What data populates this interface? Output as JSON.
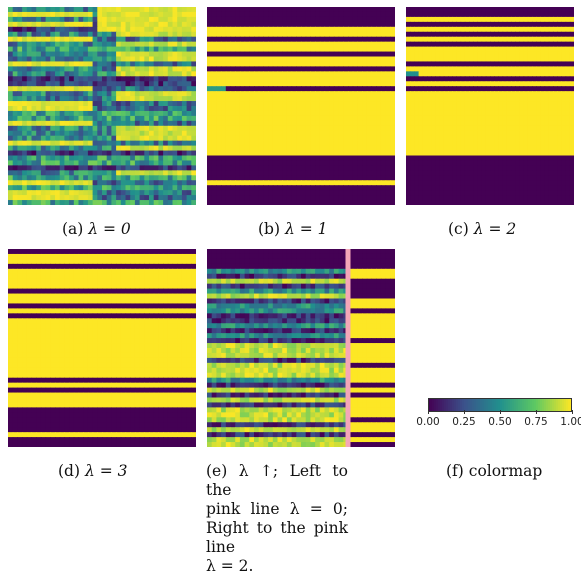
{
  "colors": {
    "low": "#440154",
    "mid": "#21908d",
    "high": "#fde725",
    "separator": "#f4a6b8"
  },
  "captions": {
    "a": {
      "prefix": "(a) ",
      "expr": "λ = 0"
    },
    "b": {
      "prefix": "(b) ",
      "expr": "λ = 1"
    },
    "c": {
      "prefix": "(c) ",
      "expr": "λ = 2"
    },
    "d": {
      "prefix": "(d) ",
      "expr": "λ = 3"
    },
    "e": {
      "line1": "(e) λ ↑; Left to the",
      "line2": "pink line λ = 0;",
      "line3": "Right to the pink line",
      "line4": "λ = 2."
    },
    "f": "(f) colormap"
  },
  "colorbar": {
    "ticks": [
      "0.00",
      "0.25",
      "0.50",
      "0.75",
      "1.00"
    ],
    "min": 0,
    "max": 1
  },
  "chart_data": [
    {
      "type": "heatmap",
      "title": "(a) λ = 0",
      "rows": 40,
      "cols": 40,
      "pattern": "noisy-mixed",
      "value_range": [
        0,
        1
      ]
    },
    {
      "type": "heatmap",
      "title": "(b) λ = 1",
      "rows": 40,
      "cols": 40,
      "pattern": "binary-rows",
      "row_values": [
        0,
        0,
        0,
        0,
        1,
        1,
        0,
        1,
        1,
        0,
        1,
        1,
        0,
        1,
        1,
        1,
        0,
        1,
        1,
        1,
        1,
        1,
        1,
        1,
        1,
        1,
        1,
        1,
        1,
        1,
        0,
        0,
        0,
        0,
        0,
        1,
        0,
        0,
        0,
        0
      ]
    },
    {
      "type": "heatmap",
      "title": "(c) λ = 2",
      "rows": 40,
      "cols": 40,
      "pattern": "binary-rows",
      "row_values": [
        0,
        0,
        1,
        0,
        1,
        0,
        1,
        0,
        1,
        1,
        1,
        0,
        1,
        1,
        0,
        1,
        0,
        1,
        1,
        1,
        1,
        1,
        1,
        1,
        1,
        1,
        1,
        1,
        1,
        1,
        0,
        0,
        0,
        0,
        0,
        0,
        0,
        0,
        0,
        0
      ]
    },
    {
      "type": "heatmap",
      "title": "(d) λ = 3",
      "rows": 40,
      "cols": 40,
      "pattern": "binary-rows",
      "row_values": [
        0,
        1,
        1,
        0,
        1,
        1,
        1,
        1,
        0,
        1,
        1,
        0,
        1,
        0,
        1,
        1,
        1,
        1,
        1,
        1,
        1,
        1,
        1,
        1,
        1,
        1,
        0,
        1,
        0,
        1,
        1,
        1,
        0,
        0,
        0,
        0,
        0,
        1,
        0,
        0
      ]
    },
    {
      "type": "heatmap",
      "title": "(e) λ ↑",
      "rows": 40,
      "cols": 40,
      "pattern": "split-at-pink-line",
      "split_column": 30
    },
    {
      "type": "colorbar",
      "title": "(f) colormap",
      "range": [
        0,
        1
      ],
      "ticks": [
        0.0,
        0.25,
        0.5,
        0.75,
        1.0
      ]
    }
  ]
}
